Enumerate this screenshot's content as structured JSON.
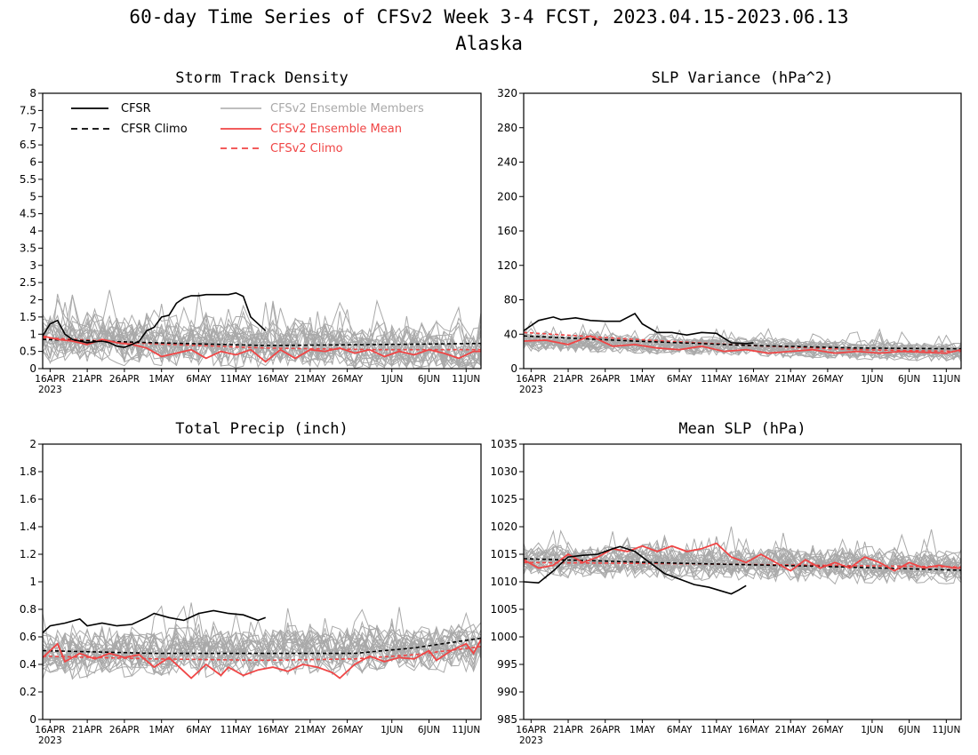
{
  "figure": {
    "title": "60-day Time Series of CFSv2 Week 3-4 FCST, 2023.04.15-2023.06.13",
    "subtitle": "Alaska"
  },
  "legend": {
    "cfsr": "CFSR",
    "cfsr_climo": "CFSR Climo",
    "members": "CFSv2 Ensemble Members",
    "ens_mean": "CFSv2 Ensemble Mean",
    "cfsv2_climo": "CFSv2 Climo"
  },
  "colors": {
    "cfsr": "#000000",
    "cfsr_climo": "#000000",
    "members": "#a9a9a9",
    "ens_mean": "#f04545",
    "cfsv2_climo": "#f04545",
    "frame": "#000000"
  },
  "x_axis": {
    "ticks": [
      {
        "day": 1,
        "label": "16APR",
        "sub": "2023"
      },
      {
        "day": 6,
        "label": "21APR",
        "sub": ""
      },
      {
        "day": 11,
        "label": "26APR",
        "sub": ""
      },
      {
        "day": 16,
        "label": "1MAY",
        "sub": ""
      },
      {
        "day": 21,
        "label": "6MAY",
        "sub": ""
      },
      {
        "day": 26,
        "label": "11MAY",
        "sub": ""
      },
      {
        "day": 31,
        "label": "16MAY",
        "sub": ""
      },
      {
        "day": 36,
        "label": "21MAY",
        "sub": ""
      },
      {
        "day": 41,
        "label": "26MAY",
        "sub": ""
      },
      {
        "day": 47,
        "label": "1JUN",
        "sub": ""
      },
      {
        "day": 52,
        "label": "6JUN",
        "sub": ""
      },
      {
        "day": 57,
        "label": "11JUN",
        "sub": ""
      }
    ],
    "xlim": [
      0,
      59
    ]
  },
  "chart_data": [
    {
      "type": "line",
      "title": "Storm Track Density",
      "ylim": [
        0,
        8
      ],
      "yticks": [
        "0",
        "0.5",
        "1",
        "1.5",
        "2",
        "2.5",
        "3",
        "3.5",
        "4",
        "4.5",
        "5",
        "5.5",
        "6",
        "6.5",
        "7",
        "7.5",
        "8"
      ],
      "cfsr": [
        [
          0,
          0.95
        ],
        [
          1,
          1.3
        ],
        [
          2,
          1.4
        ],
        [
          3,
          1.0
        ],
        [
          4,
          0.85
        ],
        [
          5,
          0.8
        ],
        [
          6,
          0.75
        ],
        [
          7,
          0.78
        ],
        [
          8,
          0.8
        ],
        [
          9,
          0.75
        ],
        [
          10,
          0.65
        ],
        [
          11,
          0.62
        ],
        [
          12,
          0.7
        ],
        [
          13,
          0.8
        ],
        [
          14,
          1.1
        ],
        [
          15,
          1.2
        ],
        [
          16,
          1.5
        ],
        [
          17,
          1.55
        ],
        [
          18,
          1.9
        ],
        [
          19,
          2.05
        ],
        [
          20,
          2.12
        ],
        [
          21,
          2.12
        ],
        [
          22,
          2.15
        ],
        [
          23,
          2.15
        ],
        [
          24,
          2.15
        ],
        [
          25,
          2.15
        ],
        [
          26,
          2.2
        ],
        [
          27,
          2.1
        ],
        [
          28,
          1.5
        ],
        [
          29,
          1.3
        ],
        [
          30,
          1.1
        ]
      ],
      "cfsr_climo": [
        [
          0,
          0.85
        ],
        [
          15,
          0.75
        ],
        [
          30,
          0.67
        ],
        [
          45,
          0.7
        ],
        [
          59,
          0.73
        ]
      ],
      "cfsv2_climo": [
        [
          0,
          0.9
        ],
        [
          15,
          0.72
        ],
        [
          30,
          0.6
        ],
        [
          45,
          0.55
        ],
        [
          59,
          0.55
        ]
      ],
      "ens_mean": [
        [
          0,
          0.95
        ],
        [
          2,
          0.85
        ],
        [
          4,
          0.8
        ],
        [
          6,
          0.7
        ],
        [
          8,
          0.85
        ],
        [
          10,
          0.75
        ],
        [
          12,
          0.7
        ],
        [
          14,
          0.6
        ],
        [
          16,
          0.35
        ],
        [
          18,
          0.45
        ],
        [
          20,
          0.55
        ],
        [
          22,
          0.3
        ],
        [
          24,
          0.5
        ],
        [
          26,
          0.4
        ],
        [
          28,
          0.55
        ],
        [
          30,
          0.2
        ],
        [
          32,
          0.55
        ],
        [
          34,
          0.3
        ],
        [
          36,
          0.55
        ],
        [
          38,
          0.5
        ],
        [
          40,
          0.6
        ],
        [
          42,
          0.45
        ],
        [
          44,
          0.55
        ],
        [
          46,
          0.35
        ],
        [
          48,
          0.5
        ],
        [
          50,
          0.4
        ],
        [
          52,
          0.55
        ],
        [
          54,
          0.45
        ],
        [
          56,
          0.3
        ],
        [
          58,
          0.5
        ],
        [
          59,
          0.5
        ]
      ],
      "members": {
        "count": 24,
        "base": [
          0.9,
          0.55
        ],
        "spread": 0.55,
        "min": 0,
        "seed": 11
      }
    },
    {
      "type": "line",
      "title": "SLP Variance (hPa^2)",
      "ylim": [
        0,
        320
      ],
      "yticks": [
        "0",
        "40",
        "80",
        "120",
        "160",
        "200",
        "240",
        "280",
        "320"
      ],
      "cfsr": [
        [
          0,
          44
        ],
        [
          2,
          56
        ],
        [
          4,
          60
        ],
        [
          5,
          57
        ],
        [
          7,
          59
        ],
        [
          9,
          56
        ],
        [
          11,
          55
        ],
        [
          13,
          55
        ],
        [
          15,
          64
        ],
        [
          16,
          52
        ],
        [
          18,
          42
        ],
        [
          20,
          42
        ],
        [
          22,
          39
        ],
        [
          24,
          42
        ],
        [
          26,
          41
        ],
        [
          28,
          30
        ],
        [
          30,
          29
        ],
        [
          31,
          30
        ]
      ],
      "cfsr_climo": [
        [
          0,
          38
        ],
        [
          15,
          32
        ],
        [
          30,
          27
        ],
        [
          45,
          24
        ],
        [
          59,
          23
        ]
      ],
      "cfsv2_climo": [
        [
          0,
          42
        ],
        [
          15,
          34
        ],
        [
          30,
          27
        ],
        [
          45,
          22
        ],
        [
          59,
          20
        ]
      ],
      "ens_mean": [
        [
          0,
          32
        ],
        [
          3,
          33
        ],
        [
          6,
          28
        ],
        [
          9,
          38
        ],
        [
          12,
          26
        ],
        [
          15,
          28
        ],
        [
          18,
          24
        ],
        [
          21,
          22
        ],
        [
          24,
          26
        ],
        [
          27,
          20
        ],
        [
          30,
          22
        ],
        [
          33,
          18
        ],
        [
          36,
          20
        ],
        [
          39,
          22
        ],
        [
          42,
          18
        ],
        [
          45,
          20
        ],
        [
          48,
          18
        ],
        [
          51,
          20
        ],
        [
          54,
          19
        ],
        [
          57,
          18
        ],
        [
          59,
          22
        ]
      ],
      "members": {
        "count": 24,
        "base": [
          33,
          20
        ],
        "spread": 9,
        "min": 5,
        "seed": 23
      }
    },
    {
      "type": "line",
      "title": "Total Precip (inch)",
      "ylim": [
        0,
        2
      ],
      "yticks": [
        "0",
        "0.2",
        "0.4",
        "0.6",
        "0.8",
        "1",
        "1.2",
        "1.4",
        "1.6",
        "1.8",
        "2"
      ],
      "cfsr": [
        [
          0,
          0.63
        ],
        [
          1,
          0.68
        ],
        [
          3,
          0.7
        ],
        [
          5,
          0.73
        ],
        [
          6,
          0.68
        ],
        [
          8,
          0.7
        ],
        [
          10,
          0.68
        ],
        [
          12,
          0.69
        ],
        [
          14,
          0.74
        ],
        [
          15,
          0.77
        ],
        [
          17,
          0.74
        ],
        [
          19,
          0.72
        ],
        [
          21,
          0.77
        ],
        [
          23,
          0.79
        ],
        [
          25,
          0.77
        ],
        [
          27,
          0.76
        ],
        [
          29,
          0.72
        ],
        [
          30,
          0.74
        ]
      ],
      "cfsr_climo": [
        [
          0,
          0.5
        ],
        [
          15,
          0.48
        ],
        [
          30,
          0.48
        ],
        [
          42,
          0.48
        ],
        [
          50,
          0.52
        ],
        [
          59,
          0.59
        ]
      ],
      "cfsv2_climo": [
        [
          0,
          0.46
        ],
        [
          15,
          0.44
        ],
        [
          30,
          0.43
        ],
        [
          42,
          0.44
        ],
        [
          50,
          0.47
        ],
        [
          59,
          0.53
        ]
      ],
      "ens_mean": [
        [
          0,
          0.45
        ],
        [
          2,
          0.55
        ],
        [
          3,
          0.42
        ],
        [
          5,
          0.48
        ],
        [
          7,
          0.44
        ],
        [
          9,
          0.48
        ],
        [
          11,
          0.45
        ],
        [
          13,
          0.47
        ],
        [
          15,
          0.38
        ],
        [
          17,
          0.45
        ],
        [
          19,
          0.35
        ],
        [
          20,
          0.3
        ],
        [
          22,
          0.4
        ],
        [
          24,
          0.32
        ],
        [
          25,
          0.38
        ],
        [
          27,
          0.32
        ],
        [
          29,
          0.36
        ],
        [
          31,
          0.38
        ],
        [
          33,
          0.35
        ],
        [
          35,
          0.4
        ],
        [
          37,
          0.38
        ],
        [
          39,
          0.34
        ],
        [
          40,
          0.3
        ],
        [
          42,
          0.4
        ],
        [
          44,
          0.46
        ],
        [
          46,
          0.42
        ],
        [
          48,
          0.45
        ],
        [
          50,
          0.44
        ],
        [
          52,
          0.5
        ],
        [
          53,
          0.43
        ],
        [
          55,
          0.5
        ],
        [
          57,
          0.55
        ],
        [
          58,
          0.48
        ],
        [
          59,
          0.58
        ]
      ],
      "members": {
        "count": 24,
        "base": [
          0.47,
          0.52
        ],
        "spread": 0.13,
        "min": 0.1,
        "seed": 37
      }
    },
    {
      "type": "line",
      "title": "Mean SLP (hPa)",
      "ylim": [
        985,
        1035
      ],
      "yticks": [
        "985",
        "990",
        "995",
        "1000",
        "1005",
        "1010",
        "1015",
        "1020",
        "1025",
        "1030",
        "1035"
      ],
      "cfsr": [
        [
          0,
          1010
        ],
        [
          2,
          1009.8
        ],
        [
          4,
          1012
        ],
        [
          6,
          1014.5
        ],
        [
          8,
          1014.8
        ],
        [
          10,
          1015
        ],
        [
          12,
          1016
        ],
        [
          13,
          1016.4
        ],
        [
          15,
          1015.5
        ],
        [
          17,
          1013.5
        ],
        [
          19,
          1011.5
        ],
        [
          21,
          1010.5
        ],
        [
          23,
          1009.5
        ],
        [
          25,
          1009
        ],
        [
          27,
          1008.2
        ],
        [
          28,
          1007.8
        ],
        [
          29,
          1008.5
        ],
        [
          30,
          1009.3
        ]
      ],
      "cfsr_climo": [
        [
          0,
          1014.2
        ],
        [
          20,
          1013.4
        ],
        [
          40,
          1012.8
        ],
        [
          59,
          1012.1
        ]
      ],
      "cfsv2_climo": [
        [
          0,
          1013.5
        ],
        [
          20,
          1013.3
        ],
        [
          40,
          1013
        ],
        [
          59,
          1012.7
        ]
      ],
      "ens_mean": [
        [
          0,
          1014
        ],
        [
          2,
          1012.5
        ],
        [
          4,
          1013
        ],
        [
          6,
          1015
        ],
        [
          8,
          1013.5
        ],
        [
          10,
          1014.5
        ],
        [
          12,
          1016
        ],
        [
          14,
          1015.5
        ],
        [
          16,
          1016.5
        ],
        [
          18,
          1015.5
        ],
        [
          20,
          1016.5
        ],
        [
          22,
          1015.5
        ],
        [
          24,
          1016
        ],
        [
          26,
          1017
        ],
        [
          28,
          1014.5
        ],
        [
          30,
          1013.5
        ],
        [
          32,
          1015
        ],
        [
          34,
          1013.5
        ],
        [
          36,
          1012
        ],
        [
          38,
          1014
        ],
        [
          40,
          1012.5
        ],
        [
          42,
          1013.5
        ],
        [
          44,
          1012.5
        ],
        [
          46,
          1014.5
        ],
        [
          48,
          1013.5
        ],
        [
          50,
          1012
        ],
        [
          52,
          1013.5
        ],
        [
          54,
          1012.5
        ],
        [
          56,
          1013
        ],
        [
          58,
          1012.5
        ],
        [
          59,
          1012.5
        ]
      ],
      "members": {
        "count": 24,
        "base": [
          1014,
          1012.8
        ],
        "spread": 2.5,
        "min": 1005,
        "seed": 53
      }
    }
  ]
}
